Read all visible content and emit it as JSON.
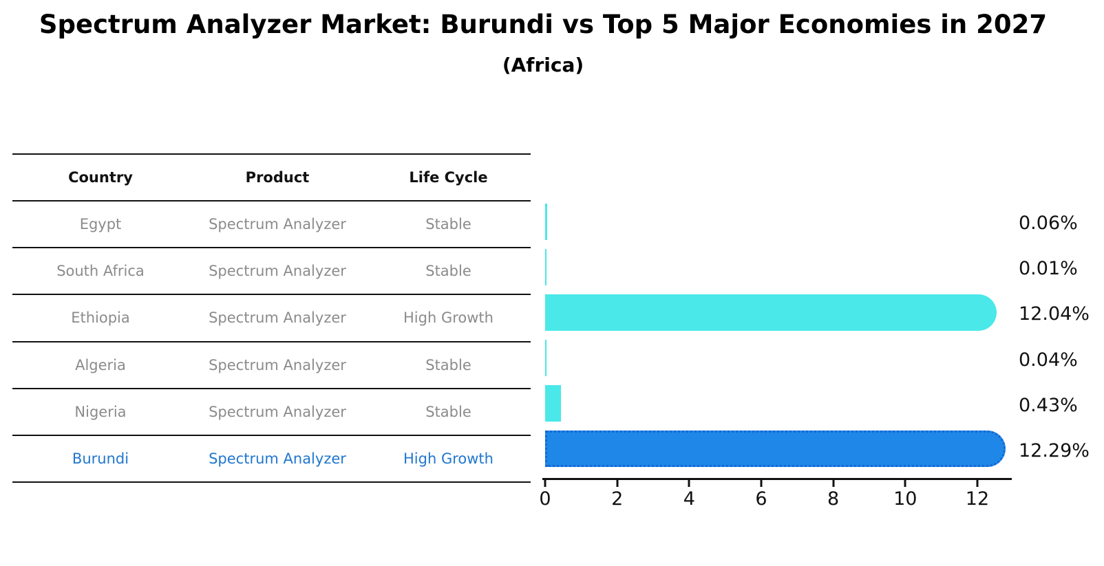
{
  "title": "Spectrum Analyzer Market: Burundi vs Top 5 Major Economies in 2027",
  "subtitle": "(Africa)",
  "table": {
    "headers": [
      "Country",
      "Product",
      "Life Cycle"
    ],
    "rows": [
      {
        "country": "Egypt",
        "product": "Spectrum Analyzer",
        "life_cycle": "Stable",
        "highlight": false
      },
      {
        "country": "South Africa",
        "product": "Spectrum Analyzer",
        "life_cycle": "Stable",
        "highlight": false
      },
      {
        "country": "Ethiopia",
        "product": "Spectrum Analyzer",
        "life_cycle": "High Growth",
        "highlight": false
      },
      {
        "country": "Algeria",
        "product": "Spectrum Analyzer",
        "life_cycle": "Stable",
        "highlight": false
      },
      {
        "country": "Nigeria",
        "product": "Spectrum Analyzer",
        "life_cycle": "Stable",
        "highlight": false
      },
      {
        "country": "Burundi",
        "product": "Spectrum Analyzer",
        "life_cycle": "High Growth",
        "highlight": true
      }
    ]
  },
  "chart_data": {
    "type": "bar",
    "orientation": "horizontal",
    "title": "Spectrum Analyzer Market: Burundi vs Top 5 Major Economies in 2027 (Africa)",
    "categories": [
      "Egypt",
      "South Africa",
      "Ethiopia",
      "Algeria",
      "Nigeria",
      "Burundi"
    ],
    "values": [
      0.06,
      0.01,
      12.04,
      0.04,
      0.43,
      12.29
    ],
    "value_labels": [
      "0.06%",
      "0.01%",
      "12.04%",
      "0.04%",
      "0.43%",
      "12.29%"
    ],
    "xlabel": "",
    "ylabel": "",
    "xlim": [
      0,
      13
    ],
    "xticks": [
      0,
      2,
      4,
      6,
      8,
      10,
      12
    ],
    "grid": false,
    "legend": false,
    "bar_color": "#4AE8E8",
    "highlight_bar_color": "#1E87E8",
    "highlight_bar_border": "#1467D2",
    "highlight_category": "Burundi"
  },
  "colors": {
    "table_text": "#8b8b8b",
    "table_header_text": "#111111",
    "highlight_text": "#2077CE",
    "axis": "#111111"
  }
}
